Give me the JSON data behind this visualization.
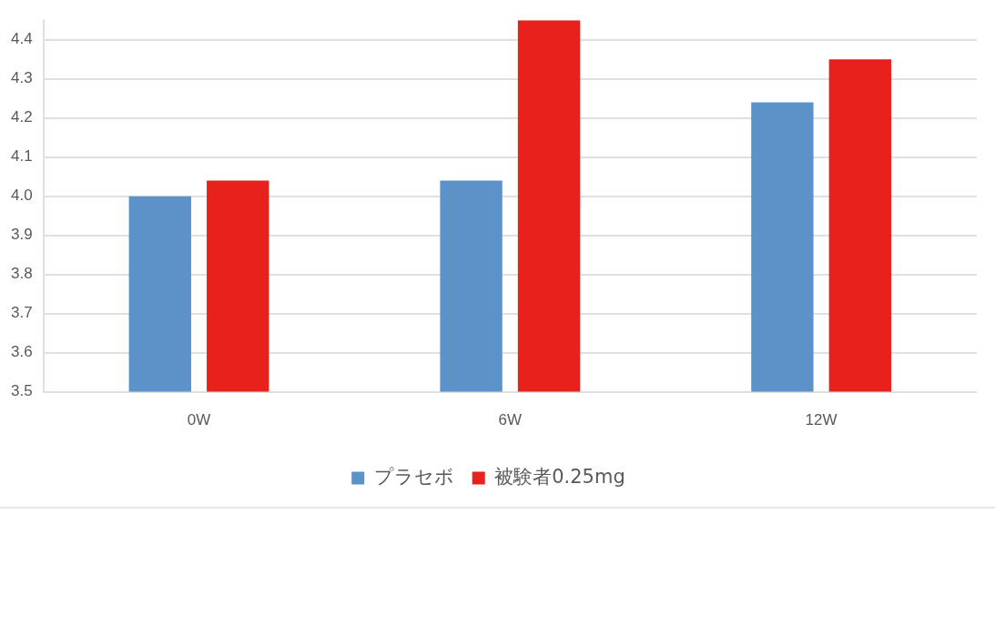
{
  "chart_data": {
    "type": "bar",
    "categories": [
      "0W",
      "6W",
      "12W"
    ],
    "series": [
      {
        "name": "プラセボ",
        "color": "#5b93c9",
        "values": [
          4.0,
          4.04,
          4.24
        ]
      },
      {
        "name": "被験者0.25mg",
        "color": "#e8211c",
        "values": [
          4.04,
          4.45,
          4.35
        ]
      }
    ],
    "ylim": [
      3.5,
      4.45
    ],
    "yticks": [
      {
        "value": 3.5,
        "label": "3.5"
      },
      {
        "value": 3.6,
        "label": "3.6"
      },
      {
        "value": 3.7,
        "label": "3.7"
      },
      {
        "value": 3.8,
        "label": "3.8"
      },
      {
        "value": 3.9,
        "label": "3.9"
      },
      {
        "value": 4.0,
        "label": "4.0"
      },
      {
        "value": 4.1,
        "label": "4.1"
      },
      {
        "value": 4.2,
        "label": "4.2"
      },
      {
        "value": 4.3,
        "label": "4.3"
      },
      {
        "value": 4.4,
        "label": "4.4"
      }
    ],
    "grid": "y",
    "legend": "bottom"
  }
}
